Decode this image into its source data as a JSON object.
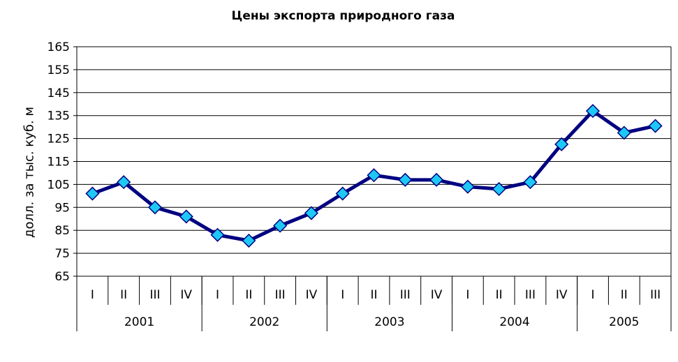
{
  "chart_data": {
    "type": "line",
    "title": "Цены экспорта природного газа",
    "xlabel": "",
    "ylabel": "долл. за тыс. куб. м",
    "ylim": [
      65,
      165
    ],
    "yticks": [
      65,
      75,
      85,
      95,
      105,
      115,
      125,
      135,
      145,
      155,
      165
    ],
    "grid": true,
    "legend": "none",
    "categories": [
      "I",
      "II",
      "III",
      "IV",
      "I",
      "II",
      "III",
      "IV",
      "I",
      "II",
      "III",
      "IV",
      "I",
      "II",
      "III",
      "IV",
      "I",
      "II",
      "III"
    ],
    "groups": [
      {
        "label": "2001",
        "count": 4
      },
      {
        "label": "2002",
        "count": 4
      },
      {
        "label": "2003",
        "count": 4
      },
      {
        "label": "2004",
        "count": 4
      },
      {
        "label": "2005",
        "count": 3
      }
    ],
    "series": [
      {
        "values": [
          101,
          106,
          95,
          91,
          83,
          80.5,
          87,
          92.5,
          101,
          109,
          107,
          107,
          104,
          103,
          106,
          122.5,
          137,
          127.5,
          130.5
        ],
        "line_color": "#000080",
        "marker_color": "#1EC8F5",
        "marker": "diamond"
      }
    ]
  }
}
